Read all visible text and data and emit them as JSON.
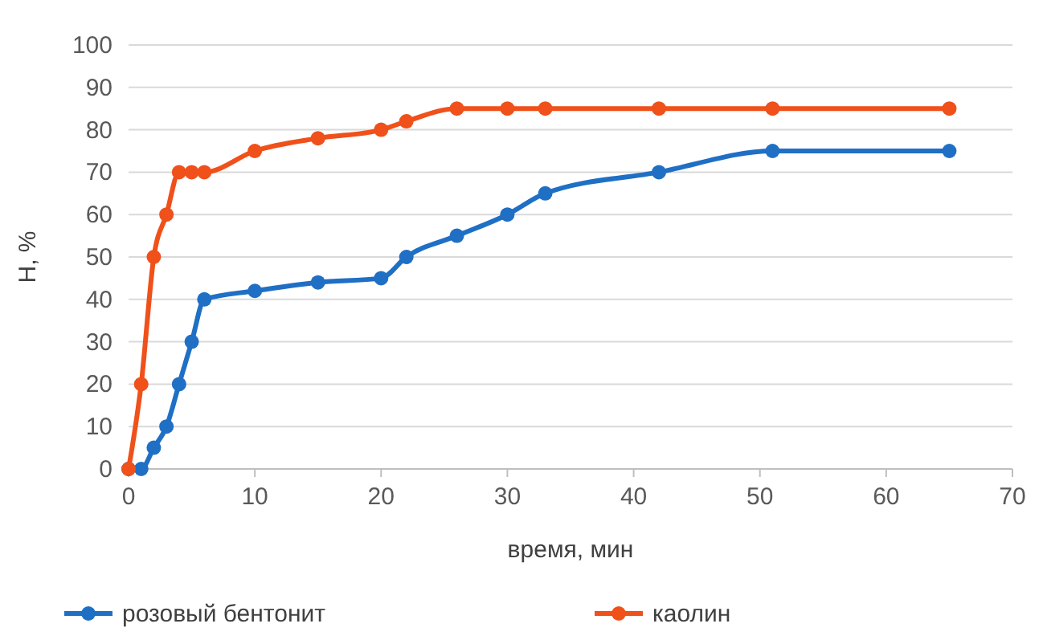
{
  "chart_data": {
    "type": "line",
    "xlabel": "время, мин",
    "ylabel": "H, %",
    "xlim": [
      0,
      70
    ],
    "xticks": [
      0,
      10,
      20,
      30,
      40,
      50,
      60,
      70
    ],
    "ylim": [
      0,
      100
    ],
    "yticks": [
      0,
      10,
      20,
      30,
      40,
      50,
      60,
      70,
      80,
      90,
      100
    ],
    "grid": "y",
    "legend": "bottom",
    "marker": "circle",
    "line_style": "solid",
    "series": [
      {
        "name": "розовый бентонит",
        "color": "#1f6fc5",
        "x": [
          0,
          1,
          2,
          3,
          4,
          5,
          6,
          10,
          15,
          20,
          22,
          26,
          30,
          33,
          42,
          51,
          65
        ],
        "values": [
          0,
          0,
          5,
          10,
          20,
          30,
          40,
          42,
          44,
          45,
          50,
          55,
          60,
          65,
          70,
          75,
          75
        ]
      },
      {
        "name": "каолин",
        "color": "#f0501a",
        "x": [
          0,
          1,
          2,
          3,
          4,
          5,
          6,
          10,
          15,
          20,
          22,
          26,
          30,
          33,
          42,
          51,
          65
        ],
        "values": [
          0,
          20,
          50,
          60,
          70,
          70,
          70,
          75,
          78,
          80,
          82,
          85,
          85,
          85,
          85,
          85,
          85
        ]
      }
    ]
  }
}
